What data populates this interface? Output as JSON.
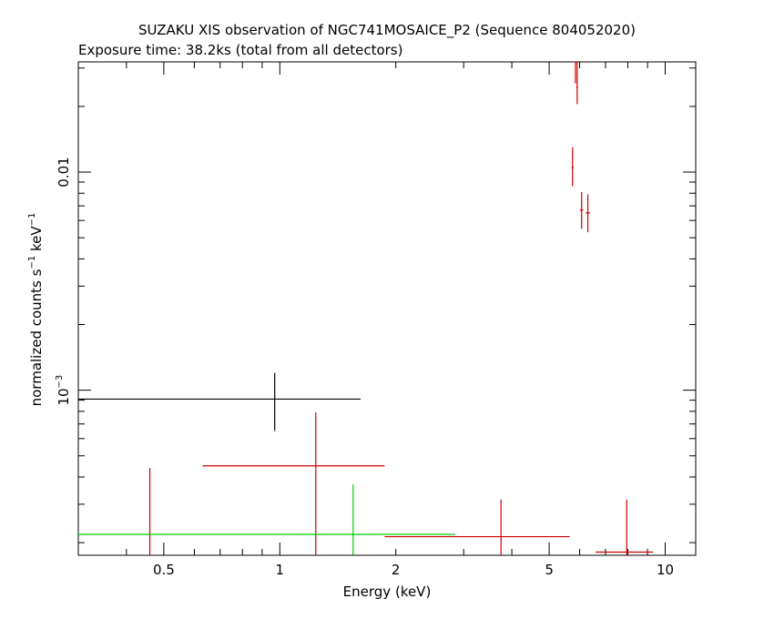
{
  "chart_data": {
    "type": "scatter",
    "title": "SUZAKU XIS observation of NGC741MOSAICE_P2 (Sequence 804052020)",
    "subtitle": "Exposure time: 38.2ks (total from all detectors)",
    "xlabel": "Energy (keV)",
    "ylabel": "normalized counts s",
    "ylabel_sup1": "−1",
    "ylabel_mid": " keV",
    "ylabel_sup2": "−1",
    "x_scale": "log",
    "y_scale": "log",
    "xlim": [
      0.3,
      12.0
    ],
    "ylim": [
      0.000175,
      0.032
    ],
    "x_ticks": [
      {
        "value": 0.5,
        "label": "0.5"
      },
      {
        "value": 1,
        "label": "1"
      },
      {
        "value": 2,
        "label": "2"
      },
      {
        "value": 5,
        "label": "5"
      },
      {
        "value": 10,
        "label": "10"
      }
    ],
    "y_ticks": [
      {
        "value": 0.001,
        "label_base": "10",
        "label_exp": "−3"
      },
      {
        "value": 0.01,
        "label_base": "0.01",
        "label_exp": ""
      }
    ],
    "grid": false,
    "legend": "none",
    "series": [
      {
        "color": "#000000",
        "points": [
          {
            "x": 0.97,
            "xlo": 0.3,
            "xhi": 1.62,
            "y": 0.00091,
            "ylo": 0.00065,
            "yhi": 0.0012
          }
        ]
      },
      {
        "color": "#cc0000",
        "points": [
          {
            "x": 0.46,
            "xlo": 0.46,
            "xhi": 0.46,
            "y": 0.0001755,
            "ylo": 0.0001755,
            "yhi": 0.00044
          },
          {
            "x": 1.24,
            "xlo": 0.63,
            "xhi": 1.87,
            "y": 0.00045,
            "ylo": 0.0001755,
            "yhi": 0.00079
          },
          {
            "x": 3.75,
            "xlo": 1.87,
            "xhi": 5.65,
            "y": 0.000213,
            "ylo": 0.000155,
            "yhi": 0.000315
          },
          {
            "x": 7.95,
            "xlo": 6.6,
            "xhi": 9.3,
            "y": 0.000181,
            "ylo": 0.000131,
            "yhi": 0.000315
          },
          {
            "x": 5.75,
            "xlo": 5.72,
            "xhi": 5.79,
            "y": 0.0105,
            "ylo": 0.0086,
            "yhi": 0.013
          },
          {
            "x": 5.85,
            "xlo": 5.82,
            "xhi": 5.88,
            "y": 0.032,
            "ylo": 0.0255,
            "yhi": 0.032
          },
          {
            "x": 5.91,
            "xlo": 5.88,
            "xhi": 5.94,
            "y": 0.0245,
            "ylo": 0.0205,
            "yhi": 0.032
          },
          {
            "x": 6.07,
            "xlo": 6.01,
            "xhi": 6.13,
            "y": 0.0067,
            "ylo": 0.0055,
            "yhi": 0.0081
          },
          {
            "x": 6.3,
            "xlo": 6.22,
            "xhi": 6.38,
            "y": 0.0065,
            "ylo": 0.0053,
            "yhi": 0.0079
          }
        ]
      },
      {
        "color": "#00cc00",
        "points": [
          {
            "x": 1.55,
            "xlo": 0.3,
            "xhi": 2.85,
            "y": 0.000218,
            "ylo": 0.0001755,
            "yhi": 0.00037
          }
        ]
      }
    ]
  }
}
